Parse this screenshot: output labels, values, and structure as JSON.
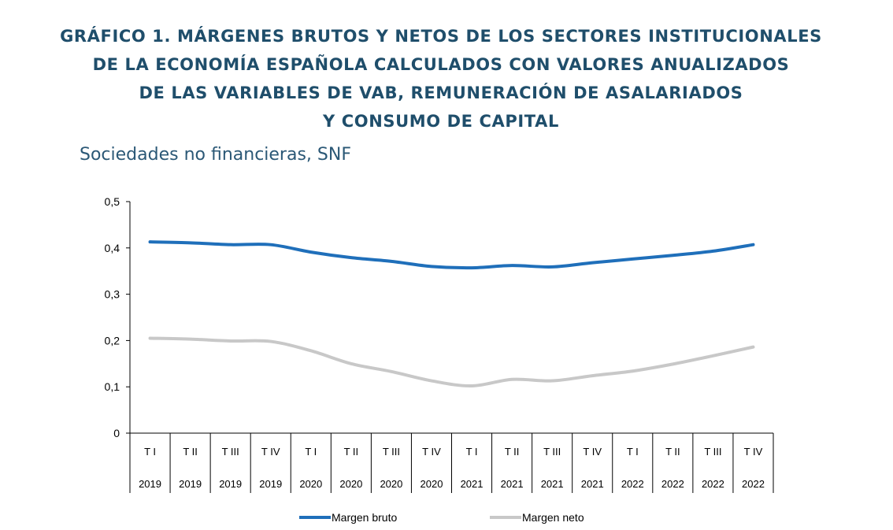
{
  "title_lines": [
    "GRÁFICO 1. MÁRGENES BRUTOS Y NETOS DE LOS SECTORES INSTITUCIONALES",
    "DE LA ECONOMÍA ESPAÑOLA CALCULADOS CON VALORES ANUALIZADOS",
    "DE LAS VARIABLES DE VAB, REMUNERACIÓN DE ASALARIADOS",
    "Y CONSUMO DE CAPITAL"
  ],
  "subtitle": "Sociedades no financieras, SNF",
  "colors": {
    "title": "#1f4e6b",
    "bruto": "#1f6fba",
    "neto": "#c8c8c8"
  },
  "chart_data": {
    "type": "line",
    "title": "Sociedades no financieras, SNF",
    "xlabel": "",
    "ylabel": "",
    "ylim": [
      0,
      0.5
    ],
    "yticks": [
      "0",
      "0,1",
      "0,2",
      "0,3",
      "0,4",
      "0,5"
    ],
    "grid": false,
    "legend_position": "bottom",
    "categories": [
      {
        "quarter": "T I",
        "year": "2019"
      },
      {
        "quarter": "T II",
        "year": "2019"
      },
      {
        "quarter": "T III",
        "year": "2019"
      },
      {
        "quarter": "T IV",
        "year": "2019"
      },
      {
        "quarter": "T I",
        "year": "2020"
      },
      {
        "quarter": "T II",
        "year": "2020"
      },
      {
        "quarter": "T III",
        "year": "2020"
      },
      {
        "quarter": "T IV",
        "year": "2020"
      },
      {
        "quarter": "T I",
        "year": "2021"
      },
      {
        "quarter": "T II",
        "year": "2021"
      },
      {
        "quarter": "T III",
        "year": "2021"
      },
      {
        "quarter": "T IV",
        "year": "2021"
      },
      {
        "quarter": "T I",
        "year": "2022"
      },
      {
        "quarter": "T II",
        "year": "2022"
      },
      {
        "quarter": "T III",
        "year": "2022"
      },
      {
        "quarter": "T IV",
        "year": "2022"
      }
    ],
    "series": [
      {
        "name": "Margen bruto",
        "color": "#1f6fba",
        "values": [
          0.413,
          0.411,
          0.407,
          0.407,
          0.391,
          0.379,
          0.371,
          0.36,
          0.357,
          0.362,
          0.359,
          0.368,
          0.376,
          0.384,
          0.393,
          0.407
        ]
      },
      {
        "name": "Margen neto",
        "color": "#c8c8c8",
        "values": [
          0.205,
          0.203,
          0.199,
          0.198,
          0.178,
          0.15,
          0.133,
          0.113,
          0.102,
          0.116,
          0.113,
          0.124,
          0.134,
          0.149,
          0.167,
          0.186
        ]
      }
    ]
  }
}
